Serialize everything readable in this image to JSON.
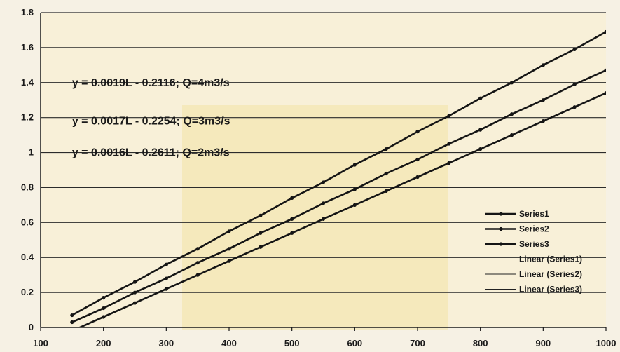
{
  "chart_data": {
    "type": "line",
    "title": "",
    "xlabel": "",
    "ylabel": "",
    "xlim": [
      100,
      1000
    ],
    "ylim": [
      0,
      1.8
    ],
    "x_ticks": [
      "100",
      "200",
      "300",
      "400",
      "500",
      "600",
      "700",
      "800",
      "900",
      "1000"
    ],
    "y_ticks": [
      "0",
      "0.2",
      "0.4",
      "0.6",
      "0.8",
      "1",
      "1.2",
      "1.4",
      "1.6",
      "1.8"
    ],
    "grid": "horizontal",
    "legend_position": "bottom-right",
    "series": [
      {
        "name": "Series1",
        "x": [
          150,
          200,
          250,
          300,
          350,
          400,
          450,
          500,
          550,
          600,
          650,
          700,
          750,
          800,
          850,
          900,
          950,
          1000
        ],
        "y": [
          0.07,
          0.17,
          0.26,
          0.36,
          0.45,
          0.55,
          0.64,
          0.74,
          0.83,
          0.93,
          1.02,
          1.12,
          1.21,
          1.31,
          1.4,
          1.5,
          1.59,
          1.69
        ]
      },
      {
        "name": "Series2",
        "x": [
          150,
          200,
          250,
          300,
          350,
          400,
          450,
          500,
          550,
          600,
          650,
          700,
          750,
          800,
          850,
          900,
          950,
          1000
        ],
        "y": [
          0.03,
          0.11,
          0.2,
          0.28,
          0.37,
          0.45,
          0.54,
          0.62,
          0.71,
          0.79,
          0.88,
          0.96,
          1.05,
          1.13,
          1.22,
          1.3,
          1.39,
          1.47
        ]
      },
      {
        "name": "Series3",
        "x": [
          150,
          200,
          250,
          300,
          350,
          400,
          450,
          500,
          550,
          600,
          650,
          700,
          750,
          800,
          850,
          900,
          950,
          1000
        ],
        "y": [
          -0.02,
          0.06,
          0.14,
          0.22,
          0.3,
          0.38,
          0.46,
          0.54,
          0.62,
          0.7,
          0.78,
          0.86,
          0.94,
          1.02,
          1.1,
          1.18,
          1.26,
          1.34
        ]
      }
    ],
    "trendlines": [
      {
        "name": "Linear (Series1)",
        "slope": 0.0019,
        "intercept": -0.2116
      },
      {
        "name": "Linear (Series2)",
        "slope": 0.0017,
        "intercept": -0.2254
      },
      {
        "name": "Linear (Series3)",
        "slope": 0.0016,
        "intercept": -0.2611
      }
    ],
    "annotations": [
      {
        "text": "y = 0.0019L - 0.2116; Q=4m3/s",
        "x": 150,
        "y": 1.38
      },
      {
        "text": "y = 0.0017L - 0.2254; Q=3m3/s",
        "x": 150,
        "y": 1.16
      },
      {
        "text": "y = 0.0016L - 0.2611; Q=2m3/s",
        "x": 150,
        "y": 0.98
      }
    ]
  }
}
